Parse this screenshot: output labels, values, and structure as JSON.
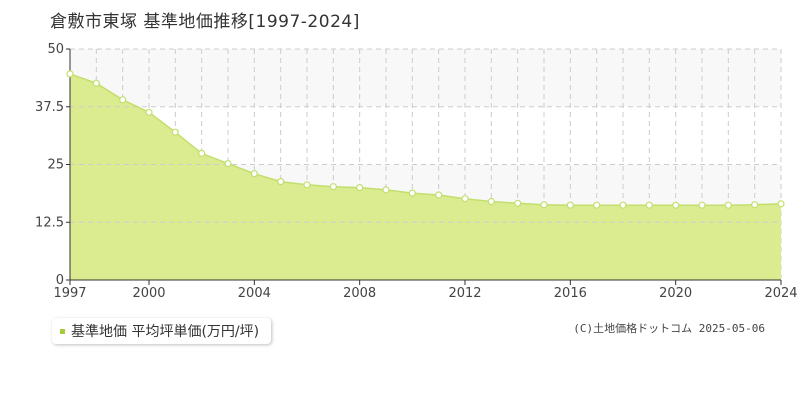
{
  "title": "倉敷市東塚 基準地価推移[1997-2024]",
  "source": "(C)土地価格ドットコム 2025-05-06",
  "colors": {
    "fill": "#dbeb8f",
    "line": "#c2df6e",
    "marker_fill": "#ffffff",
    "band": "#f8f8f8",
    "grid": "#cccccc",
    "axis": "#333333",
    "legend_swatch": "#a4cd39"
  },
  "chart_data": {
    "type": "area",
    "title": "倉敷市東塚 基準地価推移[1997-2024]",
    "xlabel": "",
    "ylabel": "",
    "xlim": [
      1997,
      2024
    ],
    "ylim": [
      0,
      50
    ],
    "yticks": [
      0,
      12.5,
      25,
      37.5,
      50
    ],
    "ytick_labels": [
      "0",
      "12.5",
      "25",
      "37.5",
      "50"
    ],
    "xticks": [
      1997,
      2000,
      2004,
      2008,
      2012,
      2016,
      2020,
      2024
    ],
    "xtick_labels": [
      "1997",
      "2000",
      "2004",
      "2008",
      "2012",
      "2016",
      "2020",
      "2024"
    ],
    "grid": true,
    "legend_position": "bottom-left",
    "series": [
      {
        "name": "基準地価 平均坪単価(万円/坪)",
        "x": [
          1997,
          1998,
          1999,
          2000,
          2001,
          2002,
          2003,
          2004,
          2005,
          2006,
          2007,
          2008,
          2009,
          2010,
          2011,
          2012,
          2013,
          2014,
          2015,
          2016,
          2017,
          2018,
          2019,
          2020,
          2021,
          2022,
          2023,
          2024
        ],
        "values": [
          44.6,
          42.6,
          39.0,
          36.3,
          32.0,
          27.4,
          25.2,
          23.0,
          21.3,
          20.6,
          20.2,
          20.0,
          19.5,
          18.8,
          18.4,
          17.6,
          17.0,
          16.6,
          16.3,
          16.2,
          16.2,
          16.2,
          16.2,
          16.2,
          16.2,
          16.2,
          16.3,
          16.5
        ]
      }
    ]
  }
}
